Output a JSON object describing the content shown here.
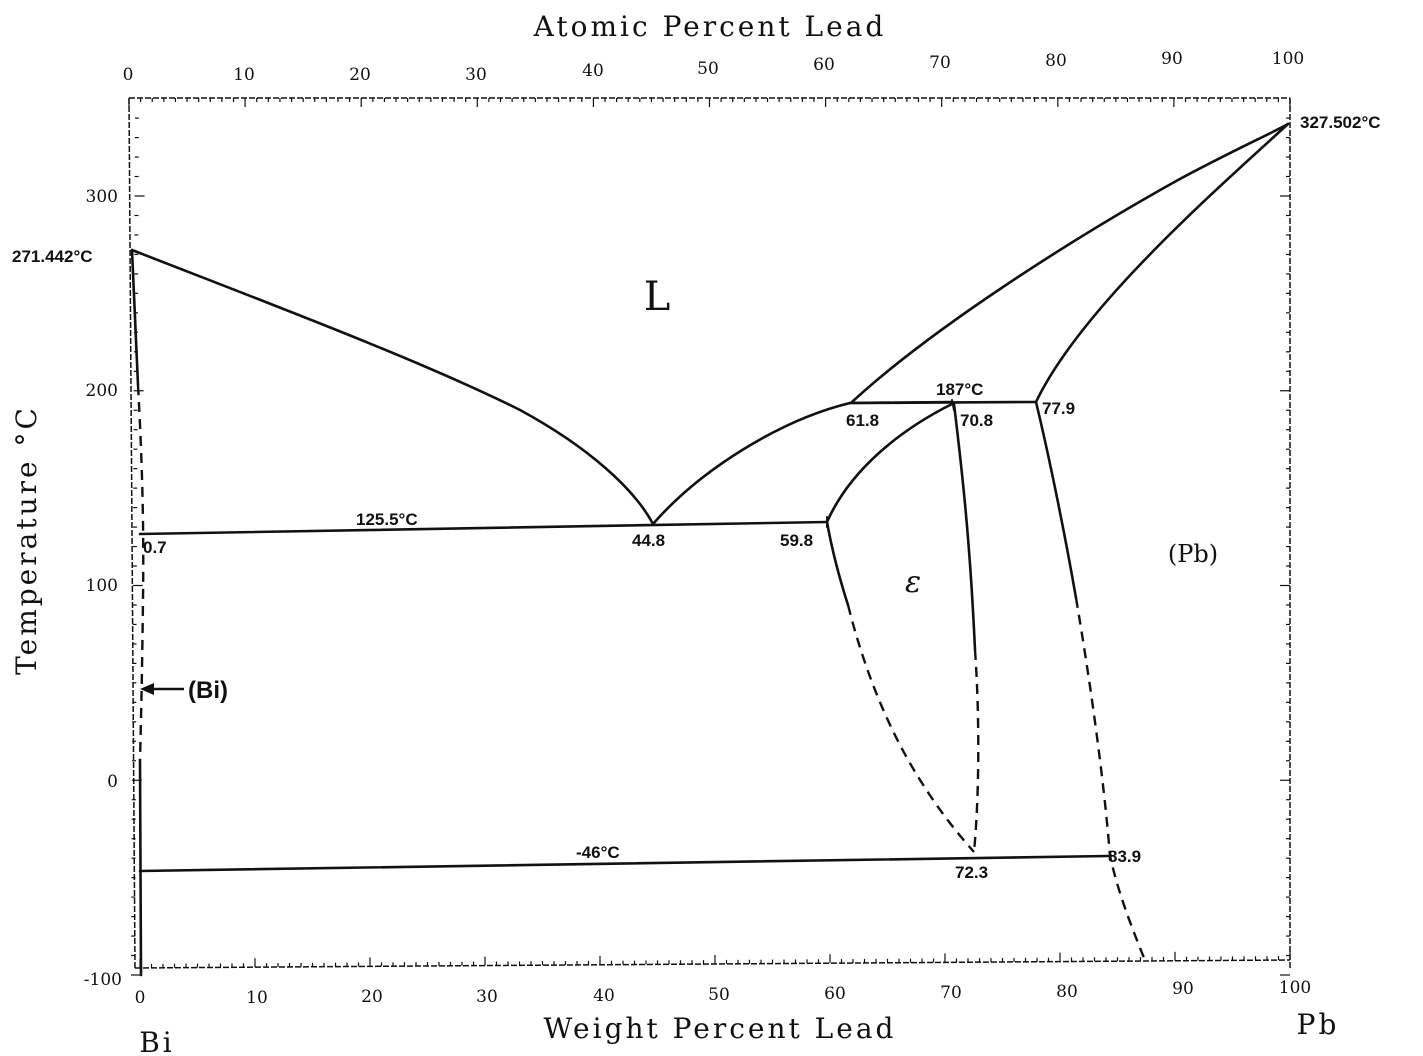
{
  "diagram": {
    "top_axis_title": "Atomic Percent Lead",
    "bottom_axis_title": "Weight Percent Lead",
    "y_axis_title": "Temperature °C",
    "element_left": "Bi",
    "element_right": "Pb",
    "top_ticks": [
      "0",
      "10",
      "20",
      "30",
      "40",
      "50",
      "60",
      "70",
      "80",
      "90",
      "100"
    ],
    "bottom_ticks": [
      "0",
      "10",
      "20",
      "30",
      "40",
      "50",
      "60",
      "70",
      "80",
      "90",
      "100"
    ],
    "y_ticks": [
      "-100",
      "0",
      "100",
      "200",
      "300"
    ],
    "phases": {
      "liquid": "L",
      "epsilon": "ε",
      "pb": "(Pb)",
      "bi": "(Bi)"
    },
    "labels": {
      "bi_melt": "271.442°C",
      "pb_melt": "327.502°C",
      "peritectic_temp": "187°C",
      "peritectic_c1": "61.8",
      "peritectic_c2": "70.8",
      "peritectic_c3": "77.9",
      "eutectic_temp": "125.5°C",
      "eutectic_c1": "0.7",
      "eutectic_c2": "44.8",
      "eutectic_c3": "59.8",
      "low_temp": "-46°C",
      "low_c1": "72.3",
      "low_c2": "83.9"
    },
    "points": {
      "bi_melt": [
        0,
        271.442
      ],
      "pb_melt": [
        100,
        327.502
      ],
      "eutectic": [
        44.8,
        125.5
      ],
      "peritectic": [
        70.8,
        187
      ],
      "eutectoid": [
        72.3,
        -46
      ]
    }
  }
}
